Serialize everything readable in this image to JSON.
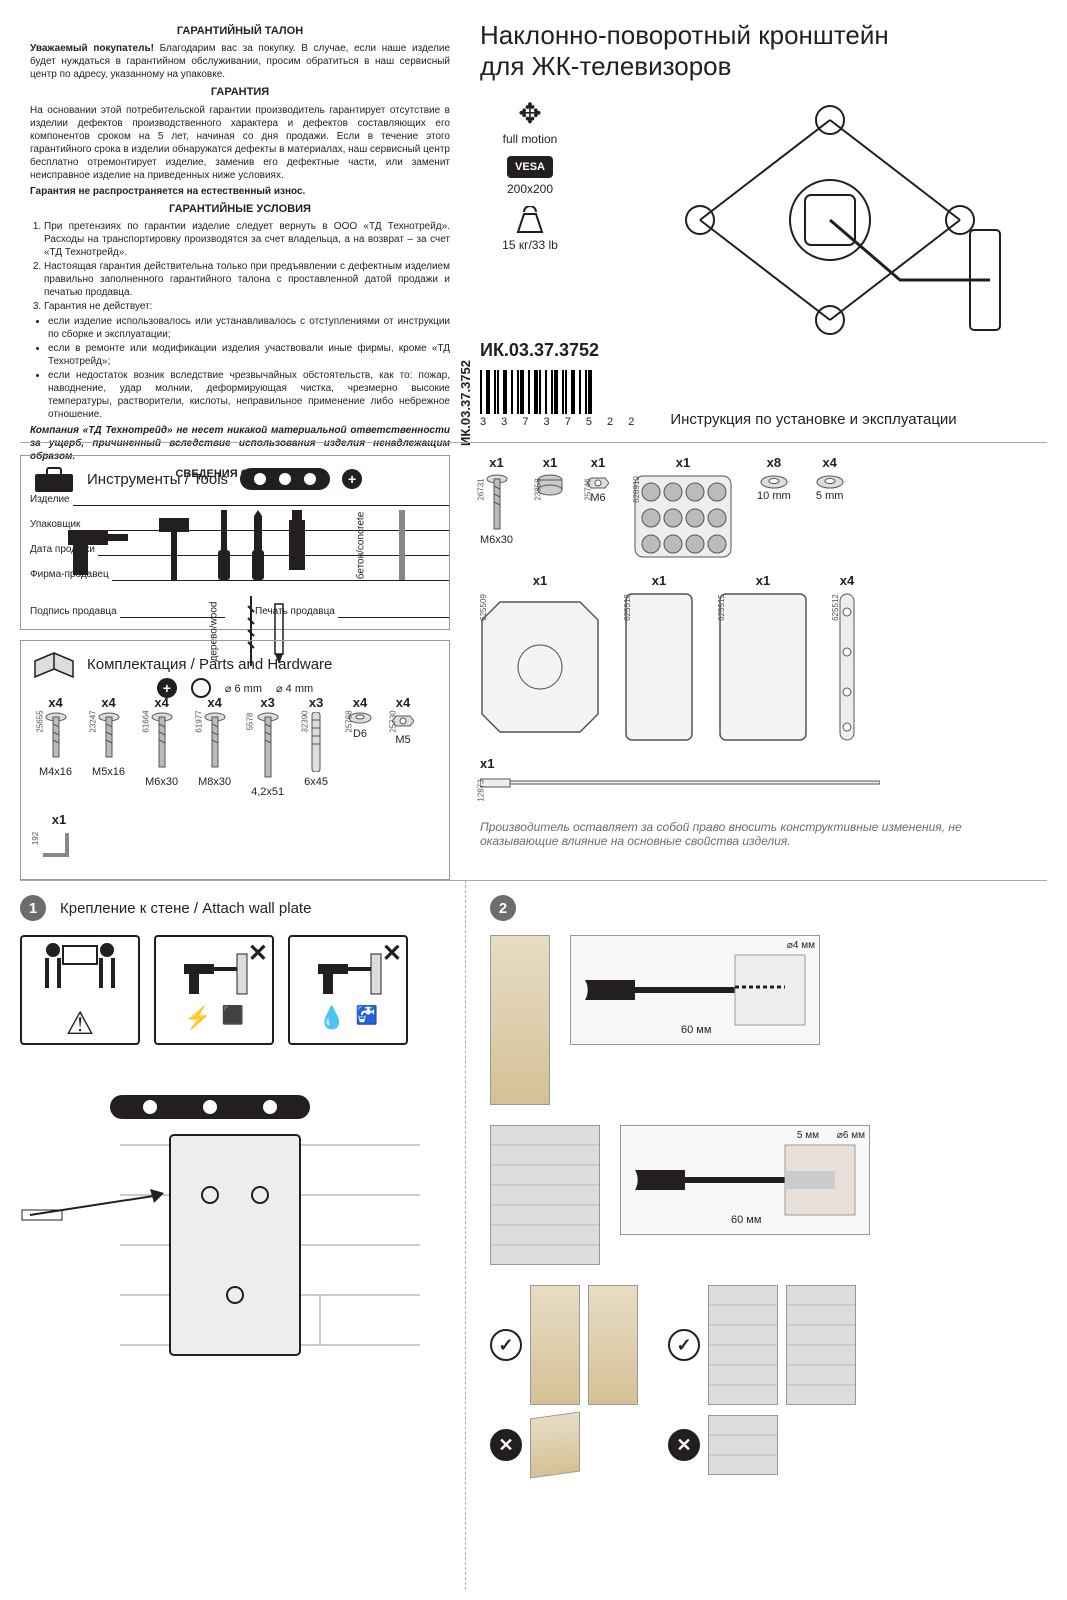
{
  "warranty": {
    "title": "ГАРАНТИЙНЫЙ ТАЛОН",
    "intro_bold": "Уважаемый покупатель!",
    "intro": " Благодарим вас за покупку. В случае, если наше изделие будет нуждаться в гарантийном обслуживании, просим обратиться в наш сервисный центр по адресу, указанному на упаковке.",
    "h_gar": "ГАРАНТИЯ",
    "gar_text": "На основании этой потребительской гарантии производитель гарантирует отсутствие в изделии дефектов производственного характера и дефектов составляющих его компонентов сроком на 5 лет, начиная со дня продажи. Если в течение этого гарантийного срока в изделии обнаружатся дефекты в материалах, наш сервисный центр бесплатно отремонтирует изделие, заменив его дефектные части, или заменит неисправное изделие на приведенных ниже условиях.",
    "gar_bold": "Гарантия не распространяется на естественный износ.",
    "h_cond": "ГАРАНТИЙНЫЕ УСЛОВИЯ",
    "cond1": "При претензиях по гарантии изделие следует вернуть в ООО «ТД Технотрейд». Расходы на транспортировку производятся за счет владельца, а на возврат – за счет «ТД Технотрейд».",
    "cond2": "Настоящая гарантия действительна только при предъявлении с дефектным изделием правильно заполненного гарантийного талона с проставленной датой продажи и печатью продавца.",
    "cond3": "Гарантия не действует:",
    "cond3a": "если изделие использовалось или устанавливалось с отступлениями от инструкции по сборке и эксплуатации;",
    "cond3b": "если в ремонте или модификации изделия участвовали иные фирмы, кроме «ТД Технотрейд»;",
    "cond3c": "если недостаток возник вследствие чрезвычайных обстоятельств, как то: пожар, наводнение, удар молнии, деформирующая чистка, чрезмерно высокие температуры, растворители, кислоты, неправильное применение либо небрежное отношение.",
    "disclaimer": "Компания «ТД Технотрейд» не несет никакой материальной ответственности за ущерб, причиненный вследствие использования изделия ненадлежащим образом.",
    "h_purchase": "СВЕДЕНИЯ О ПОКУПКЕ",
    "f_prod": "Изделие",
    "f_pack": "Упаковщик",
    "f_date": "Дата продажи",
    "f_firm": "Фирма-продавец",
    "f_sign": "Подпись продавца",
    "f_stamp": "Печать продавца",
    "code": "ИК.03.37.3752"
  },
  "product": {
    "title1": "Наклонно-поворотный кронштейн",
    "title2": "для ЖК-телевизоров",
    "spec_motion": "full motion",
    "spec_vesa": "VESA",
    "spec_vesa_val": "200x200",
    "spec_weight": "15 кг/33 lb",
    "code": "ИК.03.37.3752",
    "barcode": "3 3 7 3   7 5 2 2",
    "instr": "Инструкция по установке и эксплуатации"
  },
  "tools": {
    "heading": "Инструменты / Tools",
    "drill_concrete": "бетон/concrete",
    "drill_wood": "дерево/wood",
    "d6": "⌀ 6 mm",
    "d4": "⌀ 4 mm"
  },
  "parts": {
    "heading": "Комплектация / Parts and Hardware",
    "items": [
      {
        "qty": "x4",
        "pn": "25655",
        "label": "M4x16"
      },
      {
        "qty": "x4",
        "pn": "23247",
        "label": "M5x16"
      },
      {
        "qty": "x4",
        "pn": "61664",
        "label": "M6x30"
      },
      {
        "qty": "x4",
        "pn": "61977",
        "label": "M8x30"
      },
      {
        "qty": "x3",
        "pn": "5578",
        "label": "4,2x51"
      },
      {
        "qty": "x3",
        "pn": "32390",
        "label": "6x45"
      },
      {
        "qty": "x4",
        "pn": "25768",
        "label": "D6"
      },
      {
        "qty": "x4",
        "pn": "25730",
        "label": "M5"
      },
      {
        "qty": "x1",
        "pn": "192",
        "label": ""
      }
    ]
  },
  "right_parts": {
    "r1": [
      {
        "qty": "x1",
        "pn": "26731",
        "label": "M6x30"
      },
      {
        "qty": "x1",
        "pn": "23858",
        "label": ""
      },
      {
        "qty": "x1",
        "pn": "25746",
        "label": "M6"
      },
      {
        "qty": "x1",
        "pn": "626910",
        "label": ""
      },
      {
        "qty": "x8",
        "pn": "",
        "label": "10 mm"
      },
      {
        "qty": "x4",
        "pn": "",
        "label": "5 mm"
      }
    ],
    "r2": [
      {
        "qty": "x1",
        "pn": "625509",
        "label": ""
      },
      {
        "qty": "x1",
        "pn": "625518",
        "label": ""
      },
      {
        "qty": "x1",
        "pn": "625515",
        "label": ""
      },
      {
        "qty": "x4",
        "pn": "625512",
        "label": ""
      }
    ],
    "r3": [
      {
        "qty": "x1",
        "pn": "12873",
        "label": ""
      }
    ]
  },
  "note": "Производитель оставляет за собой право вносить конструктивные изменения, не оказывающие влияние на основные свойства изделия.",
  "steps": {
    "s1_num": "1",
    "s1_title": "Крепление к стене / Attach wall plate",
    "s2_num": "2",
    "depth60": "60 мм",
    "d4mm": "⌀4 мм",
    "d6mm": "⌀6 мм",
    "gap5": "5 мм"
  },
  "colors": {
    "text": "#231f20",
    "grey": "#6d6d6d",
    "border": "#999999",
    "bg": "#ffffff"
  }
}
